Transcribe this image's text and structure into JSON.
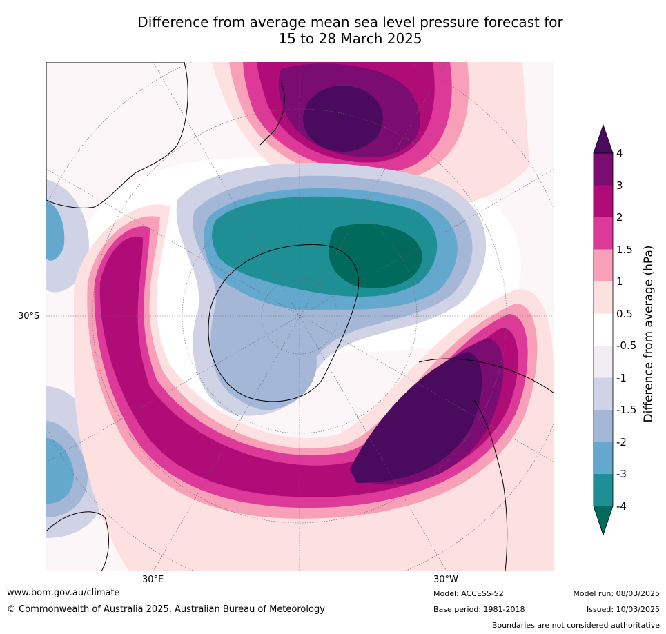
{
  "title": {
    "line1": "Difference from average mean sea level pressure forecast for",
    "line2": "15 to 28 March 2025"
  },
  "axis_labels": {
    "latitude": "30°S",
    "lon_east": "30°E",
    "lon_west": "30°W"
  },
  "colorbar": {
    "title": "Difference from average (hPa)",
    "levels": [
      "4",
      "3",
      "2",
      "1.5",
      "1",
      "0.5",
      "-0.5",
      "-1",
      "-1.5",
      "-2",
      "-3",
      "-4"
    ],
    "colors_top_to_bottom": [
      "#4a0a5e",
      "#7b0c72",
      "#b00c78",
      "#dc3998",
      "#f7a0b8",
      "#fde0e0",
      "#ffffff",
      "#f1edf3",
      "#d0d2e5",
      "#a4b7d6",
      "#64a8ce",
      "#1e8f94",
      "#006b5c"
    ]
  },
  "footer": {
    "url": "www.bom.gov.au/climate",
    "copyright": "© Commonwealth of Australia 2025, Australian Bureau of Meteorology",
    "model": "Model: ACCESS-S2",
    "base_period": "Base period: 1981-2018",
    "model_run": "Model run: 08/03/2025",
    "issued": "Issued: 10/03/2025",
    "boundaries": "Boundaries are not considered authoritative"
  }
}
